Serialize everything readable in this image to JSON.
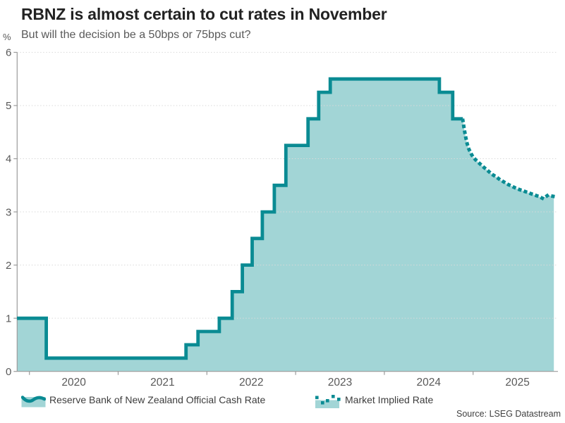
{
  "header": {
    "title": "RBNZ is almost certain to cut rates in November",
    "subtitle": "But will the decision be a 50bps or 75bps cut?",
    "y_unit": "%"
  },
  "colors": {
    "line": "#0a8b93",
    "fill": "#a2d5d6",
    "grid": "#d9d9d9",
    "axis": "#9b9b9b",
    "tick_text": "#595959",
    "title_text": "#222222",
    "legend_text": "#3d3d3d"
  },
  "legend": [
    {
      "label": "Reserve Bank of New Zealand Official Cash Rate",
      "style": "area-line"
    },
    {
      "label": "Market Implied Rate",
      "style": "dotted-line"
    }
  ],
  "source": "Source: LSEG Datastream",
  "chart_data": {
    "type": "area",
    "title": "RBNZ is almost certain to cut rates in November",
    "subtitle": "But will the decision be a 50bps or 75bps cut?",
    "xlabel": "",
    "ylabel": "%",
    "ylim": [
      0,
      6
    ],
    "xlim_years": [
      2019.86,
      2025.95
    ],
    "grid": "horizontal-dotted",
    "legend_position": "bottom",
    "x_ticks": [
      2020,
      2021,
      2022,
      2023,
      2024,
      2025
    ],
    "x_tick_labels": [
      "2020",
      "2021",
      "2022",
      "2023",
      "2024",
      "2025"
    ],
    "y_ticks": [
      0,
      1,
      2,
      3,
      4,
      5,
      6
    ],
    "y_tick_labels": [
      "0",
      "1",
      "2",
      "3",
      "4",
      "5",
      "6"
    ],
    "series": [
      {
        "name": "Reserve Bank of New Zealand Official Cash Rate",
        "type": "step-area",
        "line_style": "solid",
        "points": [
          [
            2019.86,
            1.0
          ],
          [
            2020.19,
            0.25
          ],
          [
            2021.765,
            0.5
          ],
          [
            2021.9,
            0.75
          ],
          [
            2022.14,
            1.0
          ],
          [
            2022.285,
            1.5
          ],
          [
            2022.4,
            2.0
          ],
          [
            2022.51,
            2.5
          ],
          [
            2022.625,
            3.0
          ],
          [
            2022.76,
            3.5
          ],
          [
            2022.89,
            4.25
          ],
          [
            2023.14,
            4.75
          ],
          [
            2023.26,
            5.25
          ],
          [
            2023.39,
            5.5
          ],
          [
            2024.62,
            5.25
          ],
          [
            2024.77,
            4.75
          ],
          [
            2024.885,
            4.75
          ]
        ]
      },
      {
        "name": "Market Implied Rate",
        "type": "dotted-line",
        "line_style": "dotted",
        "points": [
          [
            2024.885,
            4.72
          ],
          [
            2024.9,
            4.56
          ],
          [
            2024.915,
            4.42
          ],
          [
            2024.93,
            4.3
          ],
          [
            2024.95,
            4.19
          ],
          [
            2024.975,
            4.1
          ],
          [
            2025.0,
            4.03
          ],
          [
            2025.04,
            3.96
          ],
          [
            2025.08,
            3.9
          ],
          [
            2025.12,
            3.84
          ],
          [
            2025.17,
            3.77
          ],
          [
            2025.21,
            3.71
          ],
          [
            2025.26,
            3.66
          ],
          [
            2025.3,
            3.61
          ],
          [
            2025.35,
            3.56
          ],
          [
            2025.39,
            3.52
          ],
          [
            2025.44,
            3.48
          ],
          [
            2025.49,
            3.44
          ],
          [
            2025.54,
            3.41
          ],
          [
            2025.59,
            3.38
          ],
          [
            2025.64,
            3.35
          ],
          [
            2025.69,
            3.32
          ],
          [
            2025.74,
            3.29
          ],
          [
            2025.79,
            3.25
          ],
          [
            2025.84,
            3.31
          ],
          [
            2025.91,
            3.29
          ]
        ]
      }
    ]
  }
}
